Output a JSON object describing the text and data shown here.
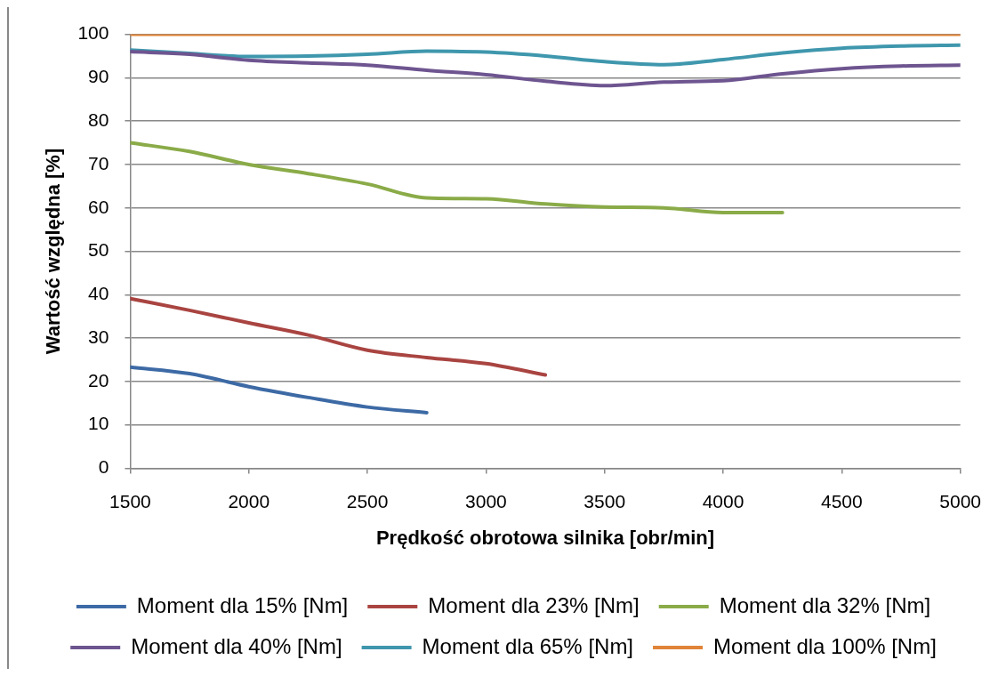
{
  "chart_data": {
    "type": "line",
    "xlabel": "Prędkość obrotowa silnika [obr/min]",
    "ylabel": "Wartość względna [%]",
    "x": [
      1500,
      1750,
      2000,
      2250,
      2500,
      2750,
      3000,
      3250,
      3500,
      3750,
      4000,
      4250,
      4500,
      4750,
      5000
    ],
    "series": [
      {
        "name": "Moment dla 15% [Nm]",
        "color": "#3d6aa5",
        "values": [
          23.3,
          21.8,
          18.8,
          16.3,
          14.1,
          12.8,
          null,
          null,
          null,
          null,
          null,
          null,
          null,
          null,
          null
        ]
      },
      {
        "name": "Moment dla 23% [Nm]",
        "color": "#a94441",
        "values": [
          39.1,
          36.4,
          33.5,
          30.7,
          27.2,
          25.5,
          24.1,
          21.5,
          null,
          null,
          null,
          null,
          null,
          null,
          null
        ]
      },
      {
        "name": "Moment dla 32% [Nm]",
        "color": "#8aab48",
        "values": [
          75,
          73,
          70,
          67.9,
          65.5,
          62.3,
          62.1,
          60.9,
          60.2,
          60,
          58.9,
          58.9,
          null,
          null,
          null
        ]
      },
      {
        "name": "Moment dla 40% [Nm]",
        "color": "#6e5590",
        "values": [
          96,
          95.4,
          94,
          93.4,
          92.9,
          91.7,
          90.7,
          89.2,
          88.2,
          89,
          89.3,
          90.9,
          92.1,
          92.7,
          92.9
        ]
      },
      {
        "name": "Moment dla 65% [Nm]",
        "color": "#3f97ad",
        "values": [
          96.4,
          95.6,
          94.9,
          95,
          95.4,
          96.1,
          95.9,
          95,
          93.7,
          93,
          94.2,
          95.7,
          96.8,
          97.3,
          97.5
        ]
      },
      {
        "name": "Moment dla 100% [Nm]",
        "color": "#e08439",
        "values": [
          100,
          100,
          100,
          100,
          100,
          100,
          100,
          100,
          100,
          100,
          100,
          100,
          100,
          100,
          100
        ]
      }
    ],
    "xlim": [
      1500,
      5000
    ],
    "xticks": [
      1500,
      2000,
      2500,
      3000,
      3500,
      4000,
      4500,
      5000
    ],
    "ylim": [
      0,
      100
    ],
    "yticks": [
      0,
      10,
      20,
      30,
      40,
      50,
      60,
      70,
      80,
      90,
      100
    ],
    "grid": "y",
    "legend": "bottom",
    "marker": "none",
    "line_style": "solid"
  }
}
